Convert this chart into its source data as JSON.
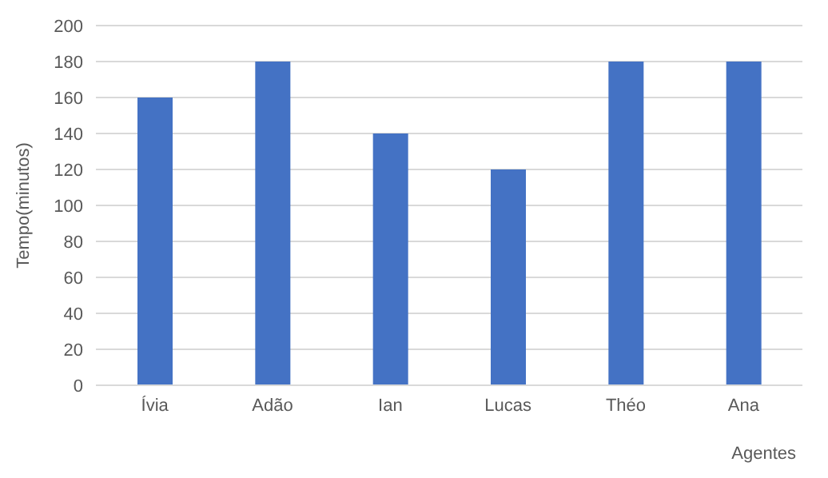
{
  "chart_data": {
    "type": "bar",
    "xlabel": "Agentes",
    "ylabel": "Tempo(minutos)",
    "categories": [
      "Ívia",
      "Adão",
      "Ian",
      "Lucas",
      "Théo",
      "Ana"
    ],
    "values": [
      160,
      180,
      140,
      120,
      180,
      180
    ],
    "color": "#4472c4",
    "ylim": [
      0,
      200
    ],
    "yticks": [
      0,
      20,
      40,
      60,
      80,
      100,
      120,
      140,
      160,
      180,
      200
    ],
    "grid": "y"
  }
}
